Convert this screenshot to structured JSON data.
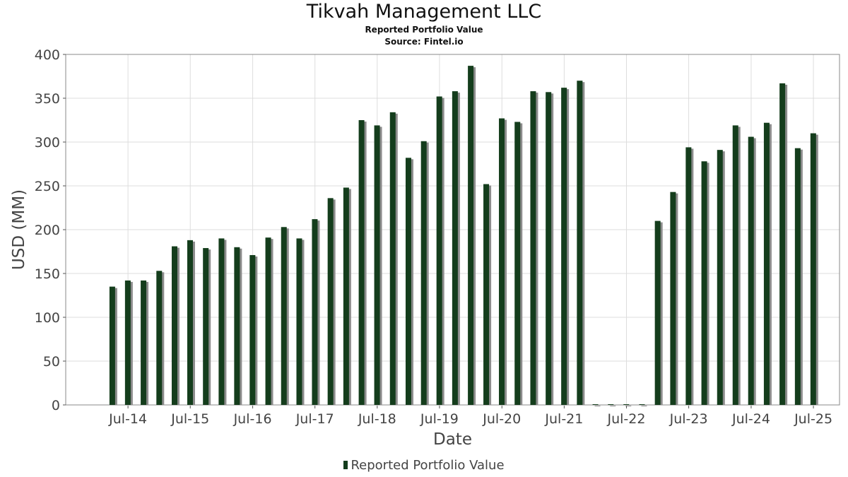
{
  "title": "Tikvah Management LLC",
  "subtitle": "Reported Portfolio Value",
  "source": "Source: Fintel.io",
  "colors": {
    "bar": "#143d1c",
    "bar_shadow": "#8c8c8c",
    "grid": "#dddddd",
    "axis": "#555555"
  },
  "chart_data": {
    "type": "bar",
    "title": "Tikvah Management LLC",
    "subtitle": "Reported Portfolio Value",
    "xlabel": "Date",
    "ylabel": "USD (MM)",
    "ylim": [
      0,
      400
    ],
    "y_ticks": [
      0,
      50,
      100,
      150,
      200,
      250,
      300,
      350,
      400
    ],
    "x_ticks": [
      "Jul-14",
      "Jul-15",
      "Jul-16",
      "Jul-17",
      "Jul-18",
      "Jul-19",
      "Jul-20",
      "Jul-21",
      "Jul-22",
      "Jul-23",
      "Jul-24",
      "Jul-25"
    ],
    "grid": true,
    "legend_position": "bottom",
    "series": [
      {
        "name": "Reported Portfolio Value",
        "color": "#143d1c",
        "x": [
          "2014-03-31",
          "2014-06-30",
          "2014-09-30",
          "2014-12-31",
          "2015-03-31",
          "2015-06-30",
          "2015-09-30",
          "2015-12-31",
          "2016-03-31",
          "2016-06-30",
          "2016-09-30",
          "2016-12-31",
          "2017-03-31",
          "2017-06-30",
          "2017-09-30",
          "2017-12-31",
          "2018-03-31",
          "2018-06-30",
          "2018-09-30",
          "2018-12-31",
          "2019-03-31",
          "2019-06-30",
          "2019-09-30",
          "2019-12-31",
          "2020-03-31",
          "2020-06-30",
          "2020-09-30",
          "2020-12-31",
          "2021-03-31",
          "2021-06-30",
          "2021-09-30",
          "2021-12-31",
          "2022-03-31",
          "2022-06-30",
          "2022-09-30",
          "2022-12-31",
          "2023-03-31",
          "2023-06-30",
          "2023-09-30",
          "2023-12-31",
          "2024-03-31",
          "2024-06-30",
          "2024-09-30",
          "2024-12-31",
          "2025-03-31",
          "2025-06-30"
        ],
        "values": [
          135,
          142,
          142,
          153,
          181,
          188,
          179,
          190,
          180,
          171,
          191,
          203,
          190,
          212,
          236,
          248,
          325,
          319,
          334,
          282,
          301,
          352,
          358,
          387,
          252,
          327,
          323,
          358,
          357,
          362,
          370,
          0,
          0,
          0,
          0,
          210,
          243,
          294,
          278,
          291,
          319,
          306,
          322,
          367,
          293,
          310
        ]
      }
    ]
  }
}
